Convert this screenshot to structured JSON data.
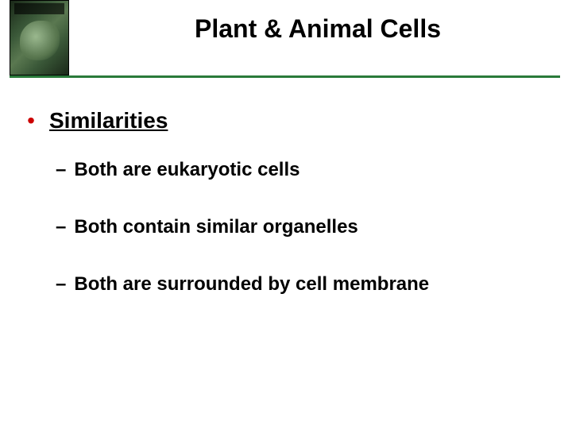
{
  "slide": {
    "title": "Plant & Animal Cells",
    "colors": {
      "title_color": "#000000",
      "divider_color": "#2a7a3a",
      "bullet_dot_color": "#cc0000",
      "text_color": "#000000",
      "background": "#ffffff"
    },
    "fonts": {
      "title_size": 32,
      "heading_size": 28,
      "sub_size": 24,
      "family": "Arial"
    },
    "main_bullet": {
      "label": "Similarities",
      "underlined": true
    },
    "sub_bullets": [
      {
        "text": "Both are eukaryotic cells"
      },
      {
        "text": "Both contain similar organelles"
      },
      {
        "text": "Both are surrounded by cell membrane"
      }
    ]
  }
}
